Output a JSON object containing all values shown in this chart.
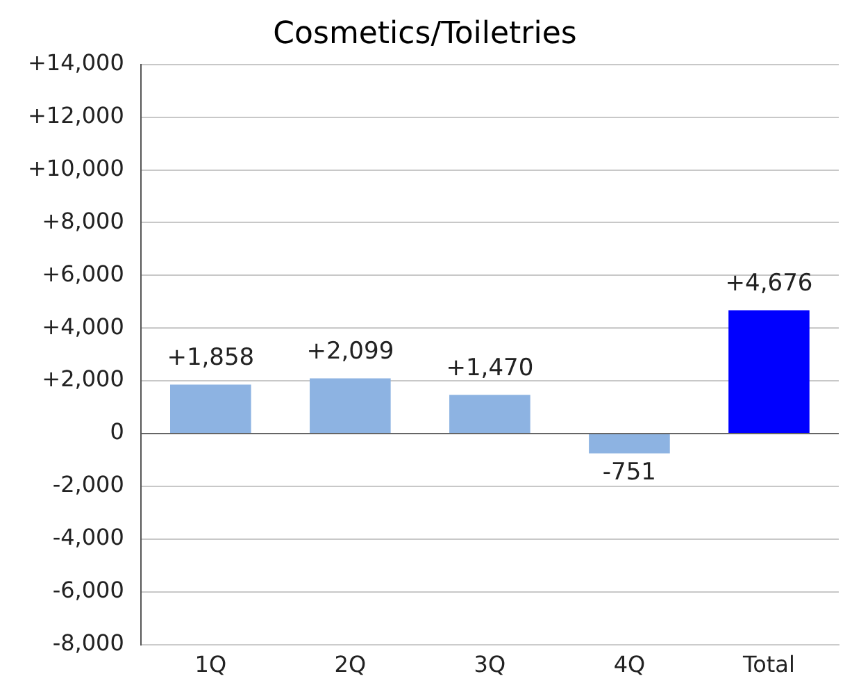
{
  "chart_data": {
    "type": "bar",
    "title": "Cosmetics/Toiletries",
    "categories": [
      "1Q",
      "2Q",
      "3Q",
      "4Q",
      "Total"
    ],
    "values": [
      1858,
      2099,
      1470,
      -751,
      4676
    ],
    "colors": [
      "#8db3e2",
      "#8db3e2",
      "#8db3e2",
      "#8db3e2",
      "#0000ff"
    ],
    "value_labels": [
      "+1,858",
      "+2,099",
      "+1,470",
      "-751",
      "+4,676"
    ],
    "ylim": [
      -8000,
      14000
    ],
    "yticks": [
      {
        "value": -8000,
        "label": "-8,000"
      },
      {
        "value": -6000,
        "label": "-6,000"
      },
      {
        "value": -4000,
        "label": "-4,000"
      },
      {
        "value": -2000,
        "label": "-2,000"
      },
      0,
      {
        "value": 2000,
        "label": "+2,000"
      },
      {
        "value": 4000,
        "label": "+4,000"
      },
      {
        "value": 6000,
        "label": "+6,000"
      },
      {
        "value": 8000,
        "label": "+8,000"
      },
      {
        "value": 10000,
        "label": "+10,000"
      },
      {
        "value": 12000,
        "label": "+12,000"
      },
      {
        "value": 14000,
        "label": "+14,000"
      }
    ],
    "grid": "y",
    "legend": false
  }
}
